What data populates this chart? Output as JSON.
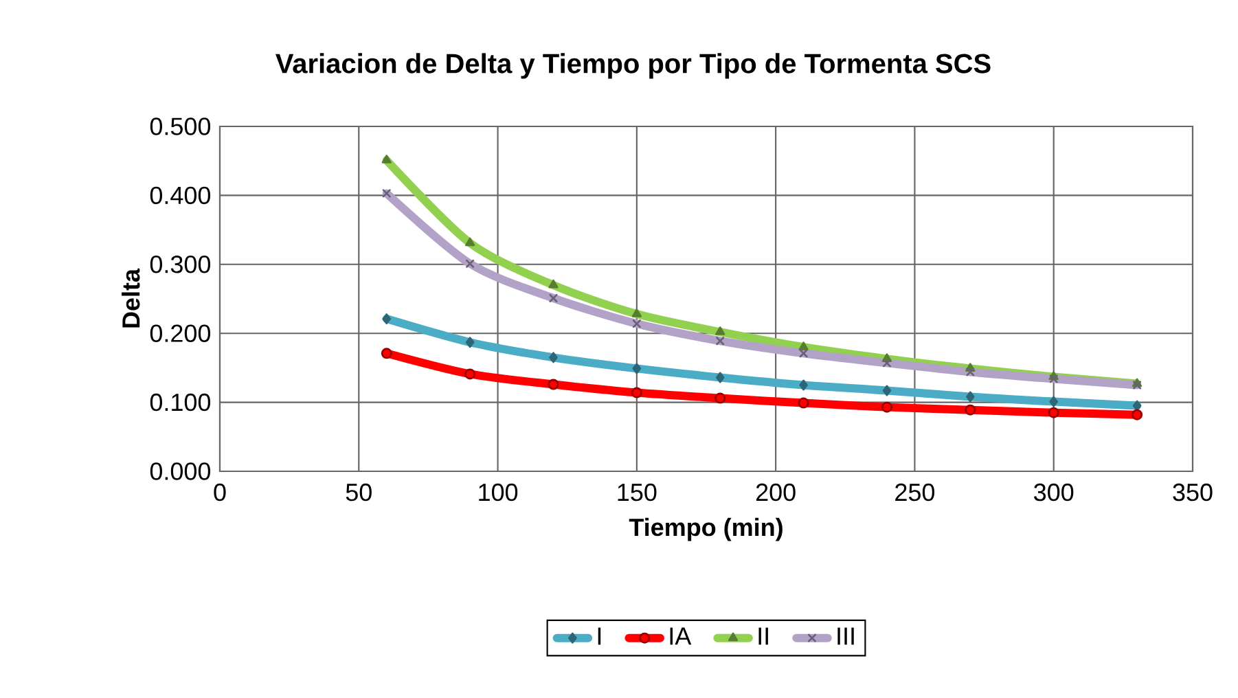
{
  "chart_data": {
    "type": "line",
    "title": "Variacion de Delta y Tiempo por Tipo de Tormenta SCS",
    "xlabel": "Tiempo (min)",
    "ylabel": "Delta",
    "x": [
      60,
      90,
      120,
      150,
      180,
      210,
      240,
      270,
      300,
      330
    ],
    "series": [
      {
        "name": "I",
        "color": "#4bacc6",
        "marker": "diamond",
        "values": [
          0.221,
          0.187,
          0.165,
          0.149,
          0.136,
          0.125,
          0.117,
          0.108,
          0.101,
          0.095
        ]
      },
      {
        "name": "IA",
        "color": "#ff0000",
        "marker": "circle",
        "values": [
          0.171,
          0.141,
          0.126,
          0.114,
          0.106,
          0.099,
          0.093,
          0.089,
          0.085,
          0.082
        ]
      },
      {
        "name": "II",
        "color": "#92d050",
        "marker": "triangle",
        "values": [
          0.451,
          0.331,
          0.27,
          0.228,
          0.202,
          0.18,
          0.163,
          0.149,
          0.137,
          0.127
        ]
      },
      {
        "name": "III",
        "color": "#b3a2c7",
        "marker": "cross",
        "values": [
          0.403,
          0.301,
          0.251,
          0.214,
          0.189,
          0.171,
          0.157,
          0.144,
          0.134,
          0.125
        ]
      }
    ],
    "xlim": [
      0,
      350
    ],
    "xticks": [
      0,
      50,
      100,
      150,
      200,
      250,
      300,
      350
    ],
    "ylim": [
      0,
      0.5
    ],
    "yticks": [
      {
        "value": 0,
        "label": "0.000"
      },
      {
        "value": 0.1,
        "label": "0.100"
      },
      {
        "value": 0.2,
        "label": "0.200"
      },
      {
        "value": 0.3,
        "label": "0.300"
      },
      {
        "value": 0.4,
        "label": "0.400"
      },
      {
        "value": 0.5,
        "label": "0.500"
      }
    ],
    "grid": true,
    "legend": "bottom",
    "line_style": "solid"
  }
}
